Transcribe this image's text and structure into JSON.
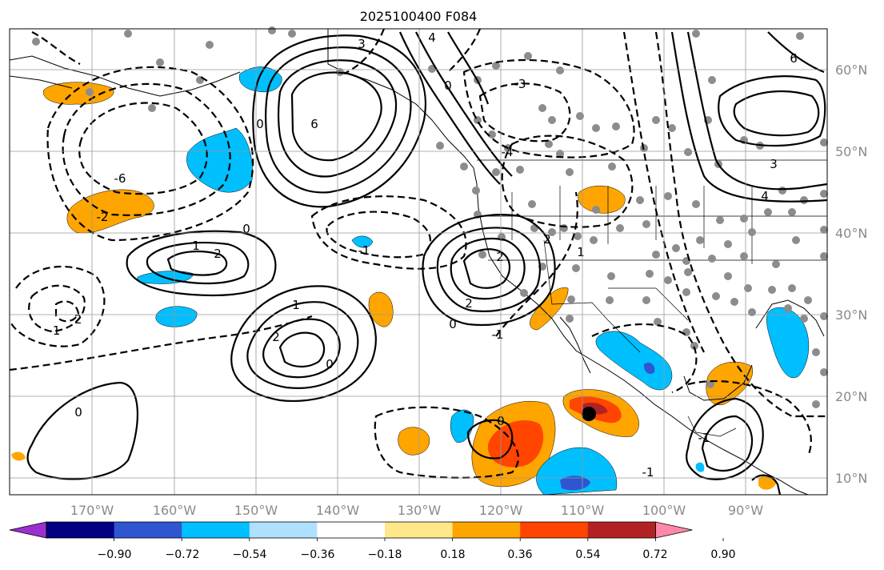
{
  "title": "2025100400 F084",
  "map": {
    "lon_ticks": [
      "170°W",
      "160°W",
      "150°W",
      "140°W",
      "130°W",
      "120°W",
      "110°W",
      "100°W",
      "90°W"
    ],
    "lat_ticks": [
      "60°N",
      "50°N",
      "40°N",
      "30°N",
      "20°N",
      "10°N"
    ],
    "grid": true,
    "contour_labels": [
      "3",
      "4",
      "6",
      "0",
      "0",
      "-3",
      "-4",
      "-6",
      "-2",
      "-1",
      "1",
      "2",
      "-2",
      "2",
      "0",
      "1",
      "-1",
      "2",
      "2",
      "2",
      "1",
      "0",
      "-1",
      "0",
      "0",
      "0",
      "-1",
      "-1",
      "4",
      "6",
      "3"
    ]
  },
  "colorbar": {
    "tick_labels": [
      "−0.90",
      "−0.72",
      "−0.54",
      "−0.36",
      "−0.18",
      "0.18",
      "0.36",
      "0.54",
      "0.72",
      "0.90"
    ],
    "colors": [
      "#9b30d0",
      "#000080",
      "#3055d0",
      "#00bfff",
      "#b0e0ff",
      "#ffffff",
      "#ffe88a",
      "#ffa500",
      "#ff4500",
      "#b22222",
      "#ff88aa"
    ]
  }
}
